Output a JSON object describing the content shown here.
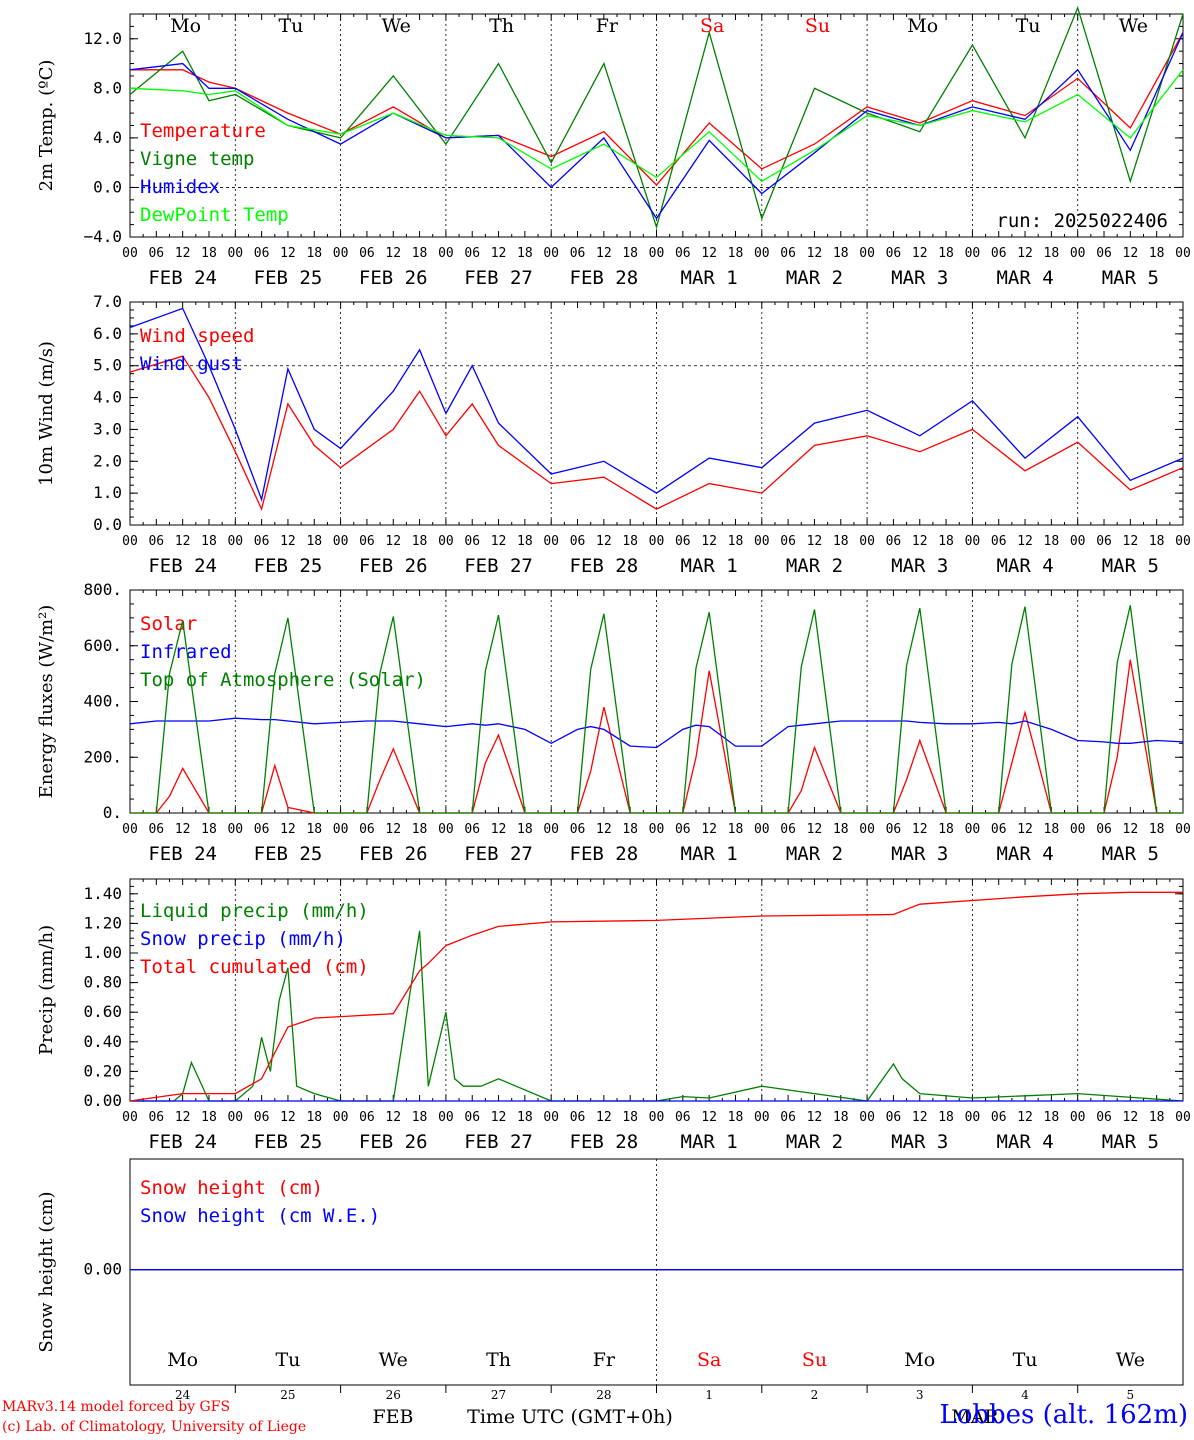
{
  "days": [
    "Mo",
    "Tu",
    "We",
    "Th",
    "Fr",
    "Sa",
    "Su",
    "Mo",
    "Tu",
    "We"
  ],
  "weekend_color": "#ff0000",
  "date_labels": [
    "FEB 24",
    "FEB 25",
    "FEB 26",
    "FEB 27",
    "FEB 28",
    "MAR  1",
    "MAR  2",
    "MAR  3",
    "MAR  4",
    "MAR  5"
  ],
  "hour_ticks": [
    "00",
    "06",
    "12",
    "18"
  ],
  "run_label": "run: 2025022406",
  "snow_panel": {
    "day_numbers": [
      "24",
      "25",
      "26",
      "27",
      "28",
      "1",
      "2",
      "3",
      "4",
      "5"
    ],
    "month_feb": "FEB",
    "month_mar": "MAR",
    "xlabel": "Time UTC (GMT+0h)"
  },
  "footer": {
    "model": "MARv3.14 model forced by GFS",
    "copyright": "(c) Lab. of Climatology, University of Liege",
    "station": "Lobbes (alt. 162m)"
  },
  "chart_data": [
    {
      "type": "line",
      "ylabel": "2m Temp. (ºC)",
      "ylim": [
        -4,
        14
      ],
      "yticks": [
        "−4.0",
        "0.0",
        "4.0",
        "8.0",
        "12.0"
      ],
      "ytick_values": [
        -4,
        0,
        4,
        8,
        12
      ],
      "x_hours_from_feb24_00": [
        0,
        12,
        18,
        24,
        36,
        48,
        60,
        72,
        84,
        96,
        108,
        120,
        132,
        144,
        156,
        168,
        180,
        192,
        204,
        216,
        228,
        240
      ],
      "series": [
        {
          "name": "Temperature",
          "color": "#ff0000",
          "values": [
            9.5,
            9.5,
            8.5,
            8,
            6,
            4.3,
            6.5,
            4,
            4.2,
            2.5,
            4.5,
            0.2,
            5.2,
            1.5,
            3.5,
            6.5,
            5.2,
            7,
            5.8,
            8.8,
            4.8,
            12.5
          ]
        },
        {
          "name": "Vigne temp",
          "color": "#008000",
          "values": [
            7.5,
            11,
            7,
            7.5,
            5,
            4,
            9,
            3.5,
            10,
            2,
            10,
            -3.2,
            12.5,
            -2.5,
            8,
            6,
            4.5,
            11.5,
            4,
            14.5,
            0.5,
            14
          ]
        },
        {
          "name": "Humidex",
          "color": "#0000ff",
          "values": [
            9.5,
            10,
            8,
            8,
            5.5,
            3.5,
            6,
            4,
            4.2,
            0,
            4,
            -2.5,
            3.8,
            -0.5,
            2.8,
            6.2,
            5,
            6.5,
            5.5,
            9.5,
            3,
            12.5
          ]
        },
        {
          "name": "DewPoint Temp",
          "color": "#00ff00",
          "values": [
            8,
            7.8,
            7.5,
            7.8,
            5,
            4.3,
            6,
            4.2,
            4,
            1.5,
            3.5,
            0.8,
            4.5,
            0.5,
            3,
            5.8,
            5,
            6.2,
            5.3,
            7.5,
            4,
            9.5
          ]
        }
      ]
    },
    {
      "type": "line",
      "ylabel": "10m Wind (m/s)",
      "ylim": [
        0,
        7
      ],
      "yticks": [
        "0.0",
        "1.0",
        "2.0",
        "3.0",
        "4.0",
        "5.0",
        "6.0",
        "7.0"
      ],
      "ytick_values": [
        0,
        1,
        2,
        3,
        4,
        5,
        6,
        7
      ],
      "x_hours_from_feb24_00": [
        0,
        12,
        18,
        24,
        30,
        36,
        42,
        48,
        60,
        66,
        72,
        78,
        84,
        96,
        108,
        120,
        132,
        144,
        156,
        168,
        180,
        192,
        204,
        216,
        228,
        240
      ],
      "series": [
        {
          "name": "Wind speed",
          "color": "#ff0000",
          "values": [
            4.8,
            5.3,
            4,
            2.3,
            0.5,
            3.8,
            2.5,
            1.8,
            3,
            4.2,
            2.8,
            3.8,
            2.5,
            1.3,
            1.5,
            0.5,
            1.3,
            1,
            2.5,
            2.8,
            2.3,
            3,
            1.7,
            2.6,
            1.1,
            1.8
          ]
        },
        {
          "name": "Wind gust",
          "color": "#0000ff",
          "values": [
            6.2,
            6.8,
            5,
            3,
            0.8,
            4.9,
            3,
            2.4,
            4.2,
            5.5,
            3.5,
            5,
            3.2,
            1.6,
            2,
            1,
            2.1,
            1.8,
            3.2,
            3.6,
            2.8,
            3.9,
            2.1,
            3.4,
            1.4,
            2.1
          ]
        }
      ]
    },
    {
      "type": "line",
      "ylabel": "Energy fluxes (W/m²)",
      "ylim": [
        0,
        800
      ],
      "yticks": [
        "0.",
        "200.",
        "400.",
        "600.",
        "800."
      ],
      "ytick_values": [
        0,
        200,
        400,
        600,
        800
      ],
      "x_hours_from_feb24_00": [
        0,
        6,
        9,
        12,
        18,
        24,
        30,
        33,
        36,
        42,
        48,
        54,
        57,
        60,
        66,
        72,
        78,
        81,
        84,
        90,
        96,
        102,
        105,
        108,
        114,
        120,
        126,
        129,
        132,
        138,
        144,
        150,
        153,
        156,
        162,
        168,
        174,
        177,
        180,
        186,
        192,
        198,
        201,
        204,
        210,
        216,
        222,
        225,
        228,
        234,
        240
      ],
      "series": [
        {
          "name": "Solar",
          "color": "#ff0000",
          "values": [
            0,
            0,
            60,
            160,
            0,
            0,
            0,
            170,
            20,
            0,
            0,
            0,
            120,
            230,
            0,
            0,
            0,
            180,
            280,
            0,
            0,
            0,
            150,
            380,
            0,
            0,
            0,
            200,
            510,
            0,
            0,
            0,
            80,
            235,
            0,
            0,
            0,
            120,
            260,
            0,
            0,
            0,
            180,
            360,
            0,
            0,
            0,
            200,
            550,
            0,
            0
          ]
        },
        {
          "name": "Infrared",
          "color": "#0000ff",
          "values": [
            320,
            330,
            330,
            330,
            330,
            340,
            335,
            335,
            330,
            320,
            325,
            330,
            330,
            330,
            320,
            310,
            320,
            315,
            320,
            300,
            250,
            300,
            310,
            300,
            240,
            235,
            300,
            315,
            310,
            240,
            240,
            310,
            315,
            320,
            330,
            330,
            330,
            330,
            325,
            320,
            320,
            325,
            320,
            330,
            300,
            260,
            255,
            250,
            250,
            260,
            255
          ]
        },
        {
          "name": "Top of Atmosphere (Solar)",
          "color": "#008000",
          "values": [
            0,
            0,
            500,
            690,
            0,
            0,
            0,
            500,
            700,
            0,
            0,
            0,
            505,
            705,
            0,
            0,
            0,
            510,
            710,
            0,
            0,
            0,
            515,
            715,
            0,
            0,
            0,
            520,
            720,
            0,
            0,
            0,
            525,
            730,
            0,
            0,
            0,
            530,
            735,
            0,
            0,
            0,
            535,
            740,
            0,
            0,
            0,
            540,
            745,
            0,
            0
          ]
        }
      ]
    },
    {
      "type": "line",
      "ylabel": "Precip (mm/h)",
      "ylim": [
        0,
        1.5
      ],
      "yticks": [
        "0.00",
        "0.20",
        "0.40",
        "0.60",
        "0.80",
        "1.00",
        "1.20",
        "1.40"
      ],
      "ytick_values": [
        0,
        0.2,
        0.4,
        0.6,
        0.8,
        1.0,
        1.2,
        1.4
      ],
      "series": [
        {
          "name": "Liquid precip (mm/h)",
          "color": "#008000",
          "x_hours_from_feb24_00": [
            0,
            10,
            12,
            14,
            18,
            24,
            28,
            30,
            32,
            34,
            36,
            38,
            42,
            48,
            60,
            66,
            68,
            72,
            74,
            76,
            80,
            84,
            96,
            120,
            126,
            132,
            144,
            168,
            174,
            176,
            180,
            192,
            216,
            240
          ],
          "values": [
            0,
            0,
            0.05,
            0.26,
            0,
            0,
            0.1,
            0.43,
            0.2,
            0.68,
            0.9,
            0.1,
            0.05,
            0,
            0,
            1.15,
            0.1,
            0.6,
            0.15,
            0.1,
            0.1,
            0.15,
            0,
            0,
            0.03,
            0.02,
            0.1,
            0,
            0.25,
            0.15,
            0.05,
            0.02,
            0.05,
            0
          ]
        },
        {
          "name": "Snow precip (mm/h)",
          "color": "#0000ff",
          "x_hours_from_feb24_00": [
            0,
            240
          ],
          "values": [
            0,
            0
          ]
        },
        {
          "name": "Total cumulated (cm)",
          "color": "#ff0000",
          "x_hours_from_feb24_00": [
            0,
            12,
            24,
            30,
            36,
            42,
            48,
            60,
            66,
            68,
            72,
            78,
            84,
            96,
            120,
            144,
            174,
            180,
            204,
            216,
            228,
            240
          ],
          "values": [
            0,
            0.05,
            0.05,
            0.15,
            0.5,
            0.56,
            0.57,
            0.59,
            0.88,
            0.93,
            1.05,
            1.12,
            1.18,
            1.21,
            1.22,
            1.25,
            1.26,
            1.33,
            1.38,
            1.4,
            1.41,
            1.41
          ]
        }
      ]
    },
    {
      "type": "line",
      "ylabel": "Snow height (cm)",
      "yticks": [
        "0.00"
      ],
      "x_hours_from_feb24_00": [
        0,
        240
      ],
      "series": [
        {
          "name": "Snow height (cm)",
          "color": "#ff0000",
          "values": [
            0,
            0
          ]
        },
        {
          "name": "Snow height (cm W.E.)",
          "color": "#0000ff",
          "values": [
            0,
            0
          ]
        }
      ]
    }
  ]
}
